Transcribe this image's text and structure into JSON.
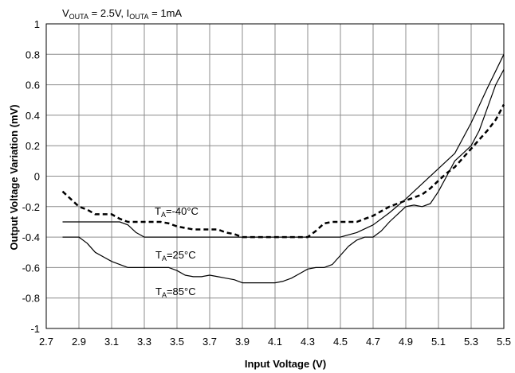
{
  "chart_data": {
    "type": "line",
    "title_parts": [
      "V",
      "OUTA",
      " = 2.5V, I",
      "OUTA",
      " = 1mA"
    ],
    "xlabel": "Input Voltage (V)",
    "ylabel": "Output Voltage Variation (mV)",
    "xlim": [
      2.7,
      5.5
    ],
    "ylim": [
      -1,
      1
    ],
    "xticks": [
      2.7,
      2.9,
      3.1,
      3.3,
      3.5,
      3.7,
      3.9,
      4.1,
      4.3,
      4.5,
      4.7,
      4.9,
      5.1,
      5.3,
      5.5
    ],
    "xtick_labels": [
      "2.7",
      "2.9",
      "3.1",
      "3.3",
      "3.5",
      "3.7",
      "3.9",
      "4.1",
      "4.3",
      "4.5",
      "4.7",
      "4.9",
      "5.1",
      "5.3",
      "5.5"
    ],
    "yticks": [
      -1,
      -0.8,
      -0.6,
      -0.4,
      -0.2,
      0,
      0.2,
      0.4,
      0.6,
      0.8,
      1
    ],
    "ytick_labels": [
      "-1",
      "-0.8",
      "-0.6",
      "-0.4",
      "-0.2",
      "0",
      "0.2",
      "0.4",
      "0.6",
      "0.8",
      "1"
    ],
    "grid": true,
    "series": [
      {
        "label_parts": [
          "T",
          "A",
          "=-40°C"
        ],
        "color": "#000000",
        "dashed": true,
        "x": [
          2.8,
          2.85,
          2.9,
          2.95,
          3.0,
          3.05,
          3.1,
          3.15,
          3.2,
          3.25,
          3.3,
          3.35,
          3.4,
          3.45,
          3.5,
          3.55,
          3.6,
          3.65,
          3.7,
          3.75,
          3.8,
          3.85,
          3.9,
          3.95,
          4.0,
          4.05,
          4.1,
          4.15,
          4.2,
          4.25,
          4.3,
          4.35,
          4.4,
          4.45,
          4.5,
          4.55,
          4.6,
          4.65,
          4.7,
          4.75,
          4.8,
          4.85,
          4.9,
          4.95,
          5.0,
          5.05,
          5.1,
          5.15,
          5.2,
          5.25,
          5.3,
          5.35,
          5.4,
          5.45,
          5.5
        ],
        "y": [
          -0.1,
          -0.15,
          -0.2,
          -0.22,
          -0.25,
          -0.25,
          -0.25,
          -0.28,
          -0.3,
          -0.3,
          -0.3,
          -0.3,
          -0.3,
          -0.31,
          -0.33,
          -0.34,
          -0.35,
          -0.35,
          -0.35,
          -0.35,
          -0.37,
          -0.38,
          -0.4,
          -0.4,
          -0.4,
          -0.4,
          -0.4,
          -0.4,
          -0.4,
          -0.4,
          -0.4,
          -0.36,
          -0.31,
          -0.3,
          -0.3,
          -0.3,
          -0.3,
          -0.28,
          -0.26,
          -0.23,
          -0.2,
          -0.18,
          -0.16,
          -0.14,
          -0.12,
          -0.08,
          -0.03,
          0.02,
          0.06,
          0.12,
          0.18,
          0.24,
          0.3,
          0.37,
          0.47
        ]
      },
      {
        "label_parts": [
          "T",
          "A",
          "=25°C"
        ],
        "color": "#000000",
        "dashed": false,
        "x": [
          2.8,
          3.0,
          3.15,
          3.2,
          3.25,
          3.3,
          3.5,
          3.7,
          3.9,
          4.1,
          4.3,
          4.5,
          4.6,
          4.7,
          4.8,
          4.9,
          5.0,
          5.1,
          5.15,
          5.2,
          5.3,
          5.4,
          5.5
        ],
        "y": [
          -0.3,
          -0.3,
          -0.3,
          -0.32,
          -0.37,
          -0.4,
          -0.4,
          -0.4,
          -0.4,
          -0.4,
          -0.4,
          -0.4,
          -0.37,
          -0.32,
          -0.24,
          -0.15,
          -0.05,
          0.05,
          0.1,
          0.15,
          0.35,
          0.58,
          0.8
        ]
      },
      {
        "label_parts": [
          "T",
          "A",
          "=85°C"
        ],
        "color": "#000000",
        "dashed": false,
        "x": [
          2.8,
          2.85,
          2.9,
          2.95,
          3.0,
          3.05,
          3.1,
          3.15,
          3.2,
          3.25,
          3.3,
          3.35,
          3.4,
          3.45,
          3.5,
          3.55,
          3.6,
          3.65,
          3.7,
          3.75,
          3.8,
          3.85,
          3.9,
          3.95,
          4.0,
          4.05,
          4.1,
          4.15,
          4.2,
          4.25,
          4.3,
          4.35,
          4.4,
          4.45,
          4.5,
          4.55,
          4.6,
          4.65,
          4.7,
          4.75,
          4.8,
          4.85,
          4.9,
          4.95,
          5.0,
          5.05,
          5.1,
          5.15,
          5.2,
          5.25,
          5.3,
          5.35,
          5.4,
          5.45,
          5.5
        ],
        "y": [
          -0.4,
          -0.4,
          -0.4,
          -0.44,
          -0.5,
          -0.53,
          -0.56,
          -0.58,
          -0.6,
          -0.6,
          -0.6,
          -0.6,
          -0.6,
          -0.6,
          -0.62,
          -0.65,
          -0.66,
          -0.66,
          -0.65,
          -0.66,
          -0.67,
          -0.68,
          -0.7,
          -0.7,
          -0.7,
          -0.7,
          -0.7,
          -0.69,
          -0.67,
          -0.64,
          -0.61,
          -0.6,
          -0.6,
          -0.58,
          -0.52,
          -0.46,
          -0.42,
          -0.4,
          -0.4,
          -0.36,
          -0.3,
          -0.25,
          -0.2,
          -0.19,
          -0.2,
          -0.18,
          -0.1,
          0.0,
          0.1,
          0.15,
          0.2,
          0.3,
          0.45,
          0.6,
          0.7
        ]
      }
    ]
  }
}
